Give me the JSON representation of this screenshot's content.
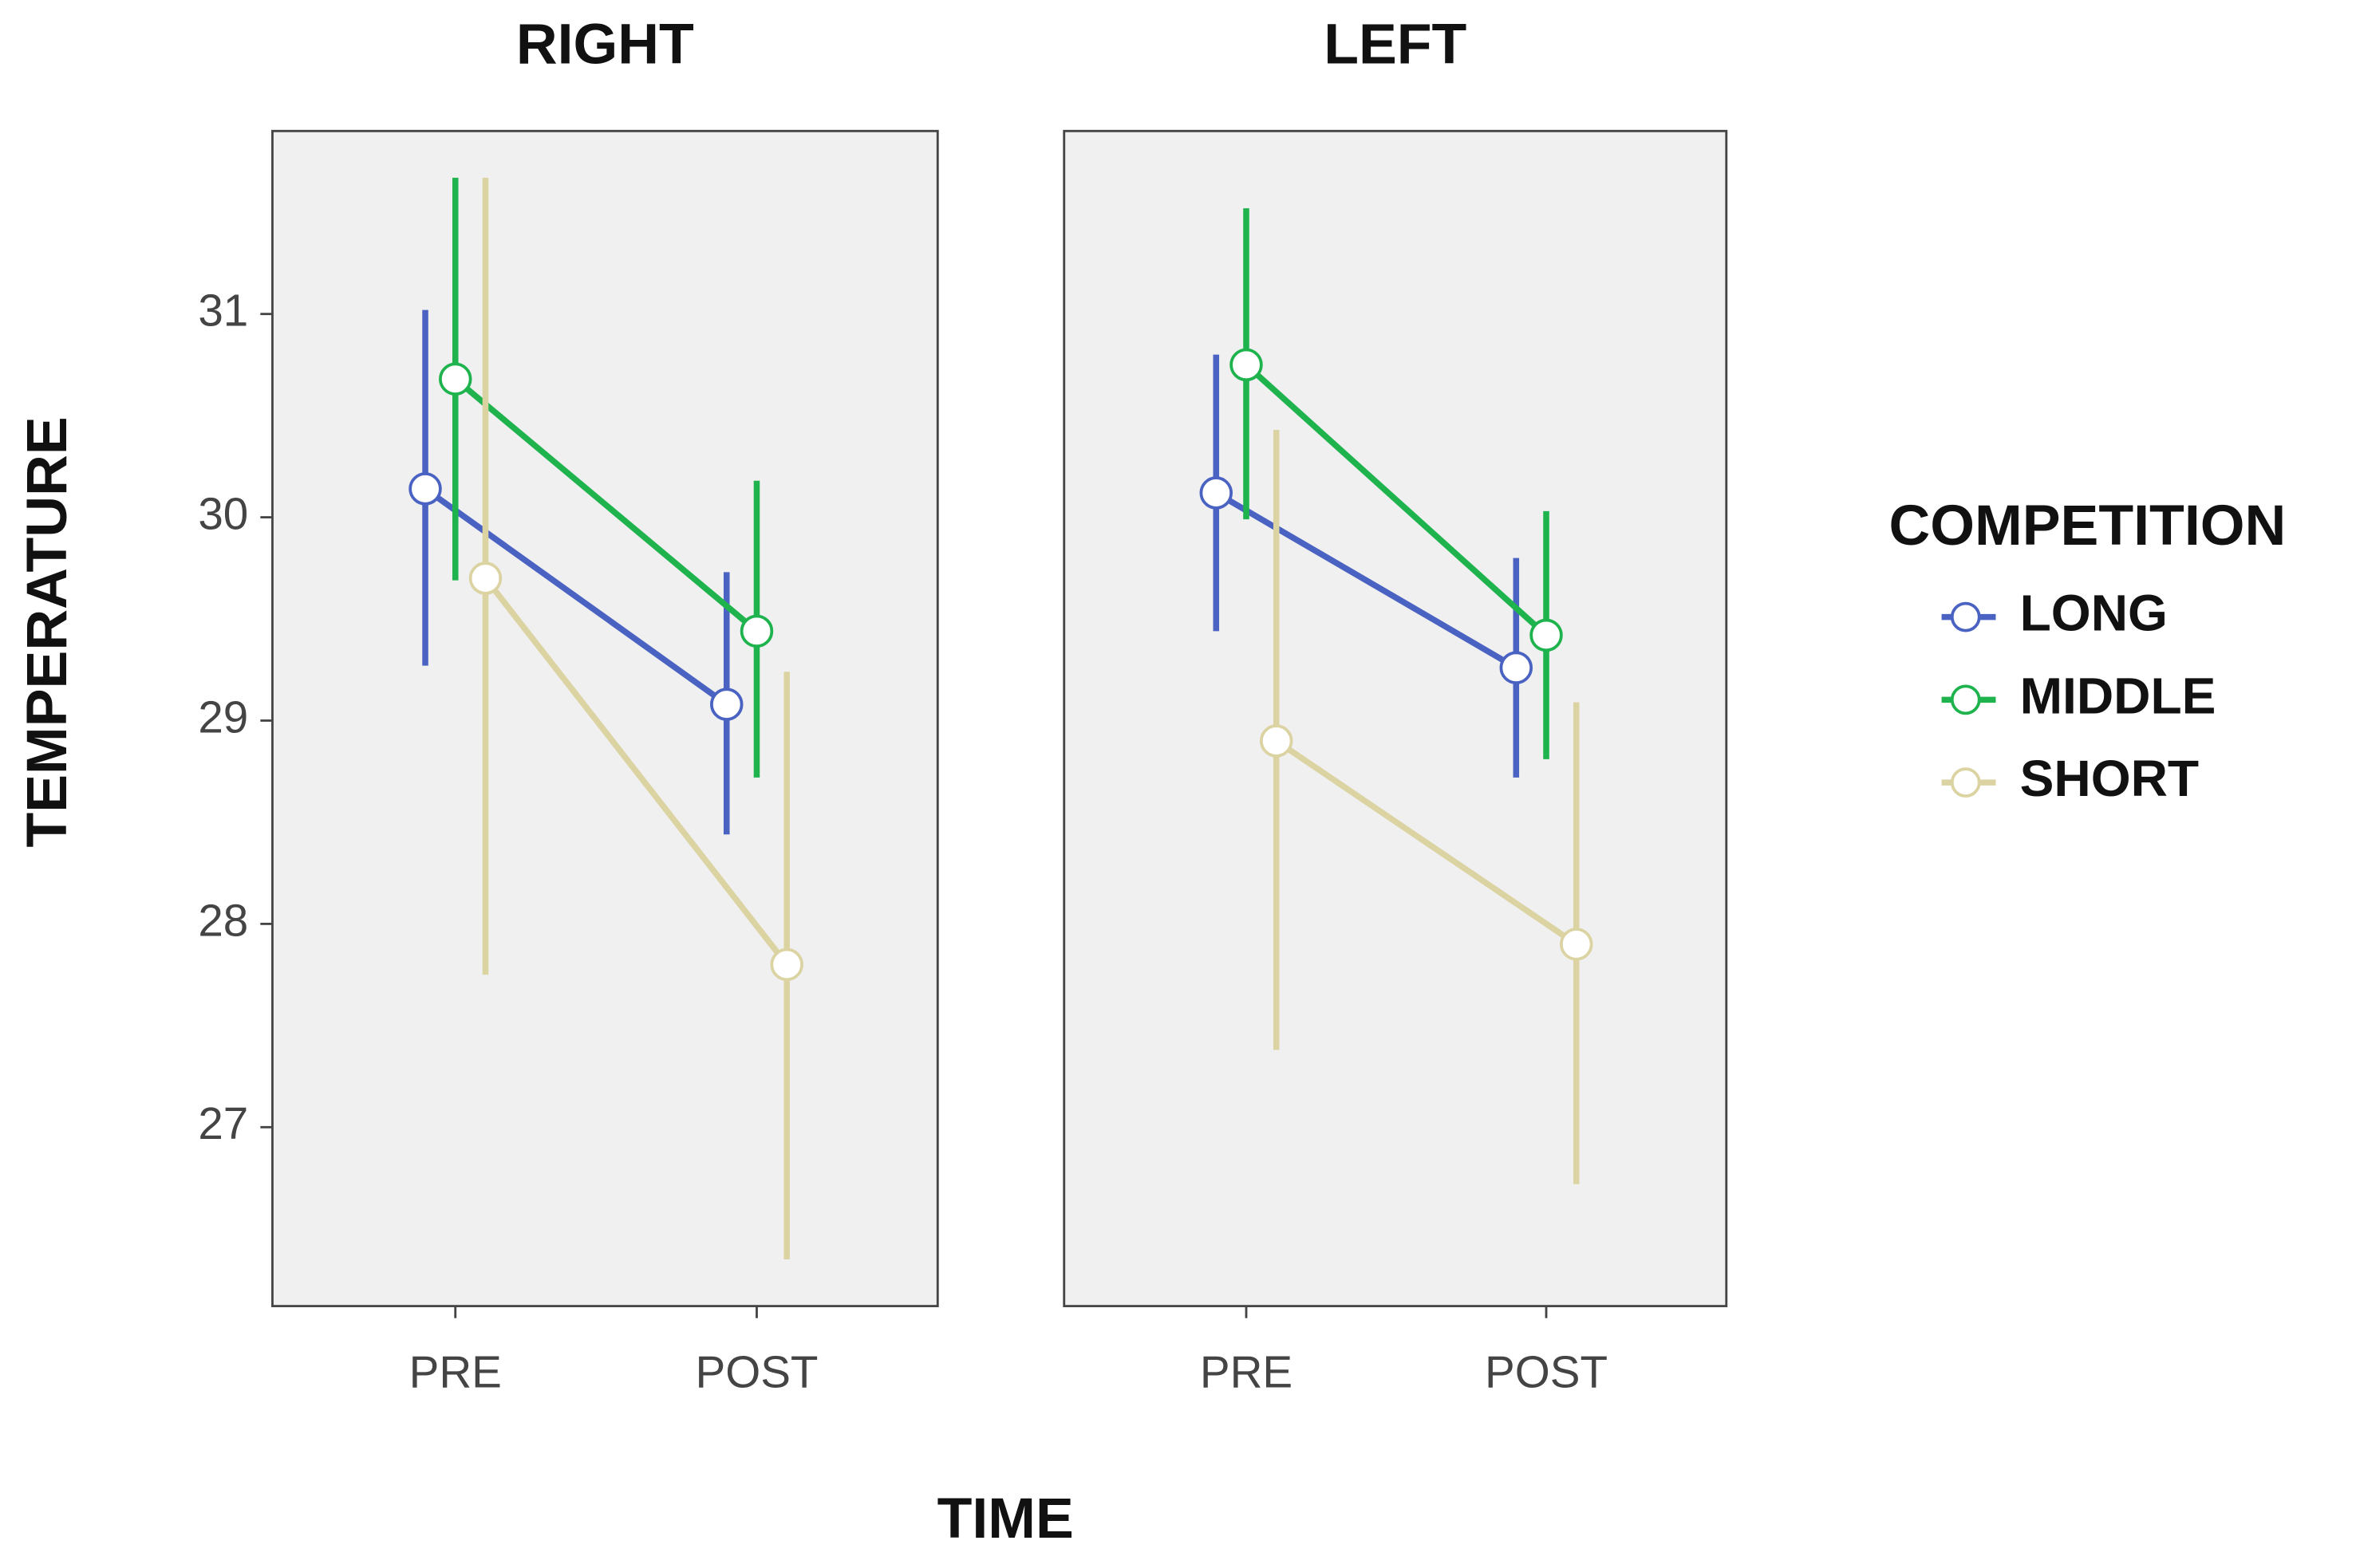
{
  "figure": {
    "y_label": "TEMPERATURE",
    "x_label": "TIME",
    "legend_title": "COMPETITION"
  },
  "chart_data": [
    {
      "type": "line",
      "title": "RIGHT",
      "categories": [
        "PRE",
        "POST"
      ],
      "ylim": [
        26.12,
        31.9
      ],
      "yticks": [
        27,
        28,
        29,
        30,
        31
      ],
      "series": [
        {
          "name": "LONG",
          "color": "#4a63c2",
          "values": [
            30.14,
            29.08
          ],
          "low": [
            29.27,
            28.44
          ],
          "high": [
            31.02,
            29.73
          ]
        },
        {
          "name": "MIDDLE",
          "color": "#1fb34e",
          "values": [
            30.68,
            29.44
          ],
          "low": [
            29.69,
            28.72
          ],
          "high": [
            31.67,
            30.18
          ]
        },
        {
          "name": "SHORT",
          "color": "#dcd3a3",
          "values": [
            29.7,
            27.8
          ],
          "low": [
            27.75,
            26.35
          ],
          "high": [
            31.67,
            29.24
          ]
        }
      ]
    },
    {
      "type": "line",
      "title": "LEFT",
      "categories": [
        "PRE",
        "POST"
      ],
      "ylim": [
        26.12,
        31.9
      ],
      "series": [
        {
          "name": "LONG",
          "color": "#4a63c2",
          "values": [
            30.12,
            29.26
          ],
          "low": [
            29.44,
            28.72
          ],
          "high": [
            30.8,
            29.8
          ]
        },
        {
          "name": "MIDDLE",
          "color": "#1fb34e",
          "values": [
            30.75,
            29.42
          ],
          "low": [
            29.99,
            28.81
          ],
          "high": [
            31.52,
            30.03
          ]
        },
        {
          "name": "SHORT",
          "color": "#dcd3a3",
          "values": [
            28.9,
            27.9
          ],
          "low": [
            27.38,
            26.72
          ],
          "high": [
            30.43,
            29.09
          ]
        }
      ]
    }
  ]
}
